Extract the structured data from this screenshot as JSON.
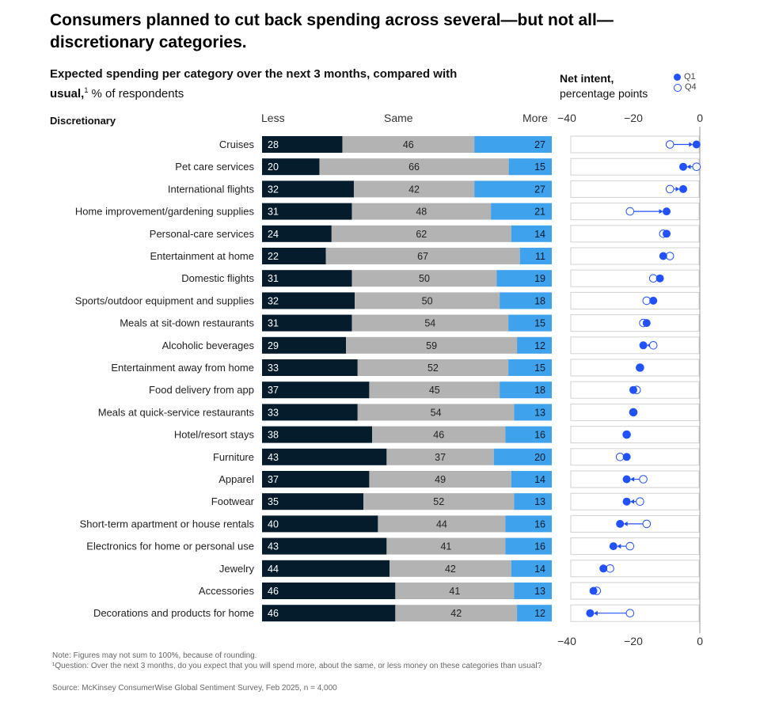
{
  "title": "Consumers planned to cut back spending across several—but not all—discretionary categories.",
  "subtitle": {
    "bold": "Expected spending per category over the next 3 months, compared with usual,",
    "sup": "1",
    "rest": " % of respondents"
  },
  "section_label": "Discretionary",
  "column_headers": {
    "less": "Less",
    "same": "Same",
    "more": "More"
  },
  "net_intent": {
    "title_bold": "Net intent,",
    "title_rest": "percentage points"
  },
  "legend": {
    "q1": "Q1",
    "q4": "Q4"
  },
  "colors": {
    "less": "#051c2c",
    "same": "#b3b3b3",
    "more": "#3ea2ec",
    "dot": "#2251ff"
  },
  "chart_data": [
    {
      "type": "bar",
      "title": "Expected spending per category over the next 3 months, compared with usual, % of respondents",
      "stacked": true,
      "categories": [
        "Cruises",
        "Pet care services",
        "International flights",
        "Home improvement/gardening supplies",
        "Personal-care services",
        "Entertainment at home",
        "Domestic flights",
        "Sports/outdoor equipment and supplies",
        "Meals at sit-down restaurants",
        "Alcoholic beverages",
        "Entertainment away from home",
        "Food delivery from app",
        "Meals at quick-service restaurants",
        "Hotel/resort stays",
        "Furniture",
        "Apparel",
        "Footwear",
        "Short-term apartment or house rentals",
        "Electronics for home or personal use",
        "Jewelry",
        "Accessories",
        "Decorations and products for home"
      ],
      "series": [
        {
          "name": "Less",
          "values": [
            28,
            20,
            32,
            31,
            24,
            22,
            31,
            32,
            31,
            29,
            33,
            37,
            33,
            38,
            43,
            37,
            35,
            40,
            43,
            44,
            46,
            46
          ]
        },
        {
          "name": "Same",
          "values": [
            46,
            66,
            42,
            48,
            62,
            67,
            50,
            50,
            54,
            59,
            52,
            45,
            54,
            46,
            37,
            49,
            52,
            44,
            41,
            42,
            41,
            42
          ]
        },
        {
          "name": "More",
          "values": [
            27,
            15,
            27,
            21,
            14,
            11,
            19,
            18,
            15,
            12,
            15,
            18,
            13,
            16,
            20,
            14,
            13,
            16,
            16,
            14,
            13,
            12
          ]
        }
      ]
    },
    {
      "type": "scatter",
      "title": "Net intent, percentage points",
      "xlim": [
        -40,
        0
      ],
      "xticks": [
        "−40",
        "−20",
        "0"
      ],
      "categories": [
        "Cruises",
        "Pet care services",
        "International flights",
        "Home improvement/gardening supplies",
        "Personal-care services",
        "Entertainment at home",
        "Domestic flights",
        "Sports/outdoor equipment and supplies",
        "Meals at sit-down restaurants",
        "Alcoholic beverages",
        "Entertainment away from home",
        "Food delivery from app",
        "Meals at quick-service restaurants",
        "Hotel/resort stays",
        "Furniture",
        "Apparel",
        "Footwear",
        "Short-term apartment or house rentals",
        "Electronics for home or personal use",
        "Jewelry",
        "Accessories",
        "Decorations and products for home"
      ],
      "series": [
        {
          "name": "Q1",
          "values": [
            -1,
            -5,
            -5,
            -10,
            -10,
            -11,
            -12,
            -14,
            -16,
            -17,
            -18,
            -20,
            -20,
            -22,
            -22,
            -22,
            -22,
            -24,
            -26,
            -29,
            -32,
            -33
          ]
        },
        {
          "name": "Q4",
          "values": [
            -9,
            -1,
            -9,
            -21,
            -11,
            -9,
            -14,
            -16,
            -17,
            -14,
            -18,
            -19,
            -20,
            -22,
            -24,
            -17,
            -18,
            -16,
            -21,
            -27,
            -31,
            -21
          ]
        }
      ]
    }
  ],
  "notes": {
    "note": "Note: Figures may not sum to 100%, because of rounding.",
    "footnote": "¹Question: Over the next 3 months, do you expect that you will spend more, about the same, or less money on these categories than usual?",
    "source": "Source: McKinsey ConsumerWise Global Sentiment Survey, Feb 2025, n = 4,000"
  }
}
